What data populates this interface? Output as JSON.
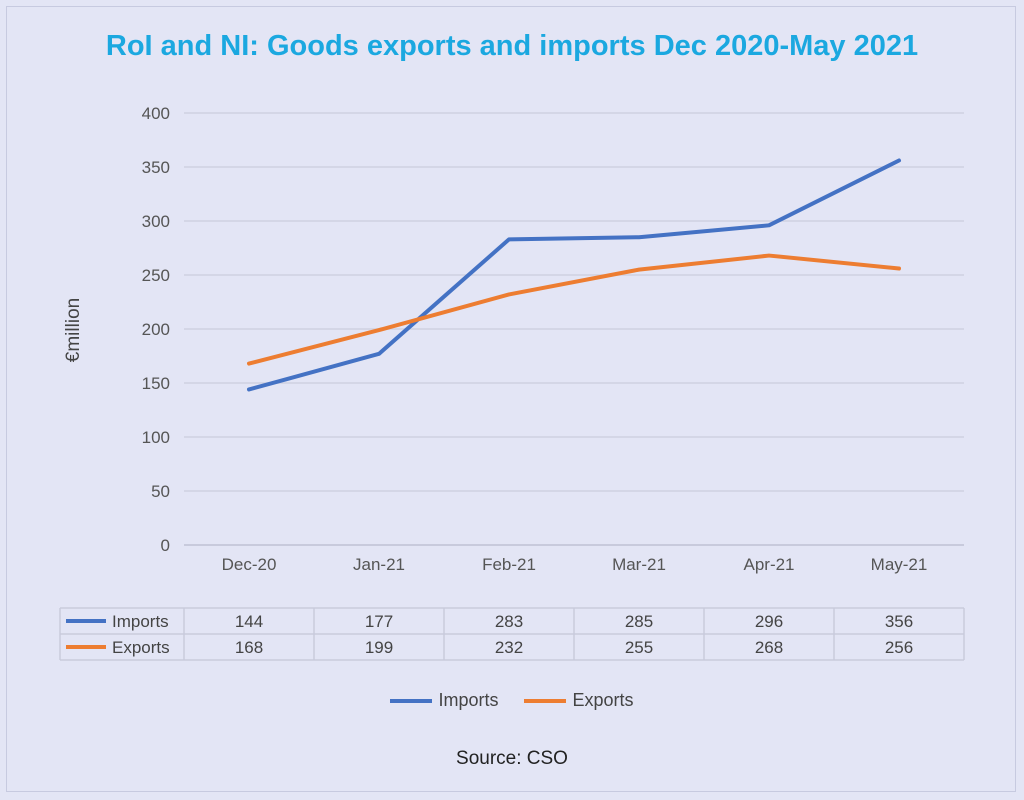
{
  "chart_data": {
    "type": "line",
    "title": "RoI and NI: Goods exports and imports Dec 2020-May 2021",
    "ylabel": "€million",
    "xlabel": "",
    "categories": [
      "Dec-20",
      "Jan-21",
      "Feb-21",
      "Mar-21",
      "Apr-21",
      "May-21"
    ],
    "ylim": [
      0,
      400
    ],
    "yticks": [
      0,
      50,
      100,
      150,
      200,
      250,
      300,
      350,
      400
    ],
    "grid": true,
    "legend_position": "bottom",
    "series": [
      {
        "name": "Imports",
        "color": "#4472c4",
        "values": [
          144,
          177,
          283,
          285,
          296,
          356
        ]
      },
      {
        "name": "Exports",
        "color": "#ed7d31",
        "values": [
          168,
          199,
          232,
          255,
          268,
          256
        ]
      }
    ],
    "data_table": true
  },
  "source": "Source: CSO"
}
